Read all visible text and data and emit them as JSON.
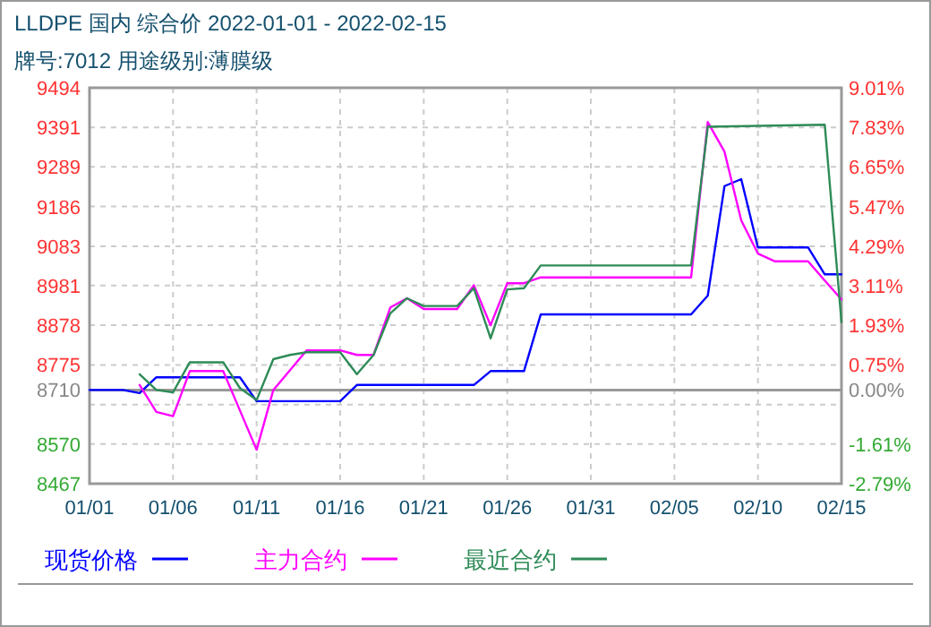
{
  "chart_data": {
    "type": "line",
    "title": "LLDPE  国内  综合价  2022-01-01 - 2022-02-15",
    "subtitle": "牌号:7012 用途级别:薄膜级",
    "xlim": [
      "2022-01-01",
      "2022-02-15"
    ],
    "xticks": [
      {
        "value": "2022-01-01",
        "label": "01/01"
      },
      {
        "value": "2022-01-06",
        "label": "01/06"
      },
      {
        "value": "2022-01-11",
        "label": "01/11"
      },
      {
        "value": "2022-01-16",
        "label": "01/16"
      },
      {
        "value": "2022-01-21",
        "label": "01/21"
      },
      {
        "value": "2022-01-26",
        "label": "01/26"
      },
      {
        "value": "2022-01-31",
        "label": "01/31"
      },
      {
        "value": "2022-02-05",
        "label": "02/05"
      },
      {
        "value": "2022-02-10",
        "label": "02/10"
      },
      {
        "value": "2022-02-15",
        "label": "02/15"
      }
    ],
    "ylim": [
      8467,
      9494
    ],
    "yticks": [
      8467,
      8570,
      {
        "value": 8672,
        "label": null
      },
      8710,
      8775,
      8878,
      8981,
      9083,
      9186,
      9289,
      9391,
      9494
    ],
    "y2lim": [
      -2.79,
      9.01
    ],
    "y2ticks": [
      {
        "value": -2.79,
        "label": "-2.79%"
      },
      {
        "value": -1.61,
        "label": "-1.61%"
      },
      {
        "value": 0,
        "label": "0.00%"
      },
      {
        "value": 0.75,
        "label": "0.75%"
      },
      {
        "value": 1.93,
        "label": "1.93%"
      },
      {
        "value": 3.11,
        "label": "3.11%"
      },
      {
        "value": 4.29,
        "label": "4.29%"
      },
      {
        "value": 5.47,
        "label": "5.47%"
      },
      {
        "value": 6.65,
        "label": "6.65%"
      },
      {
        "value": 7.83,
        "label": "7.83%"
      },
      {
        "value": 9.01,
        "label": "9.01%"
      }
    ],
    "ref_lines": [
      {
        "axis": "y",
        "value": 8710,
        "color": "#999999"
      }
    ],
    "grid": true,
    "legend": "bottom",
    "line_style": "solid",
    "series": [
      {
        "name": "现货价格",
        "color": "#0000ff",
        "x": [
          "2022-01-01",
          "2022-01-03",
          "2022-01-04",
          "2022-01-05",
          "2022-01-10",
          "2022-01-11",
          "2022-01-16",
          "2022-01-17",
          "2022-01-24",
          "2022-01-25",
          "2022-01-27",
          "2022-01-28",
          "2022-02-06",
          "2022-02-07",
          "2022-02-08",
          "2022-02-09",
          "2022-02-10",
          "2022-02-13",
          "2022-02-14",
          "2022-02-15"
        ],
        "values": [
          8710,
          8710,
          8702,
          8743,
          8743,
          8681,
          8681,
          8723,
          8723,
          8759,
          8759,
          8906,
          8906,
          8955,
          9239,
          9257,
          9080,
          9080,
          9010,
          9010
        ]
      },
      {
        "name": "主力合约",
        "color": "#ff00ff",
        "x": [
          "2022-01-04",
          "2022-01-05",
          "2022-01-06",
          "2022-01-07",
          "2022-01-09",
          "2022-01-11",
          "2022-01-12",
          "2022-01-14",
          "2022-01-16",
          "2022-01-17",
          "2022-01-18",
          "2022-01-19",
          "2022-01-20",
          "2022-01-21",
          "2022-01-23",
          "2022-01-24",
          "2022-01-25",
          "2022-01-26",
          "2022-01-27",
          "2022-01-28",
          "2022-02-06",
          "2022-02-07",
          "2022-02-08",
          "2022-02-09",
          "2022-02-10",
          "2022-02-11",
          "2022-02-13",
          "2022-02-14",
          "2022-02-15"
        ],
        "values": [
          8723,
          8653,
          8642,
          8759,
          8759,
          8555,
          8710,
          8813,
          8813,
          8801,
          8801,
          8924,
          8948,
          8920,
          8920,
          8982,
          8878,
          8987,
          8987,
          9002,
          9002,
          9405,
          9328,
          9150,
          9064,
          9044,
          9044,
          8994,
          8945
        ]
      },
      {
        "name": "最近合约",
        "color": "#2e8b57",
        "x": [
          "2022-01-04",
          "2022-01-05",
          "2022-01-06",
          "2022-01-07",
          "2022-01-09",
          "2022-01-10",
          "2022-01-11",
          "2022-01-12",
          "2022-01-13",
          "2022-01-14",
          "2022-01-16",
          "2022-01-17",
          "2022-01-18",
          "2022-01-19",
          "2022-01-20",
          "2022-01-21",
          "2022-01-23",
          "2022-01-24",
          "2022-01-25",
          "2022-01-26",
          "2022-01-27",
          "2022-01-28",
          "2022-02-06",
          "2022-02-07",
          "2022-02-14",
          "2022-02-15"
        ],
        "values": [
          8751,
          8710,
          8704,
          8782,
          8782,
          8715,
          8684,
          8790,
          8801,
          8808,
          8808,
          8751,
          8801,
          8909,
          8948,
          8928,
          8928,
          8974,
          8844,
          8971,
          8974,
          9033,
          9033,
          9393,
          9398,
          8886
        ]
      }
    ]
  }
}
